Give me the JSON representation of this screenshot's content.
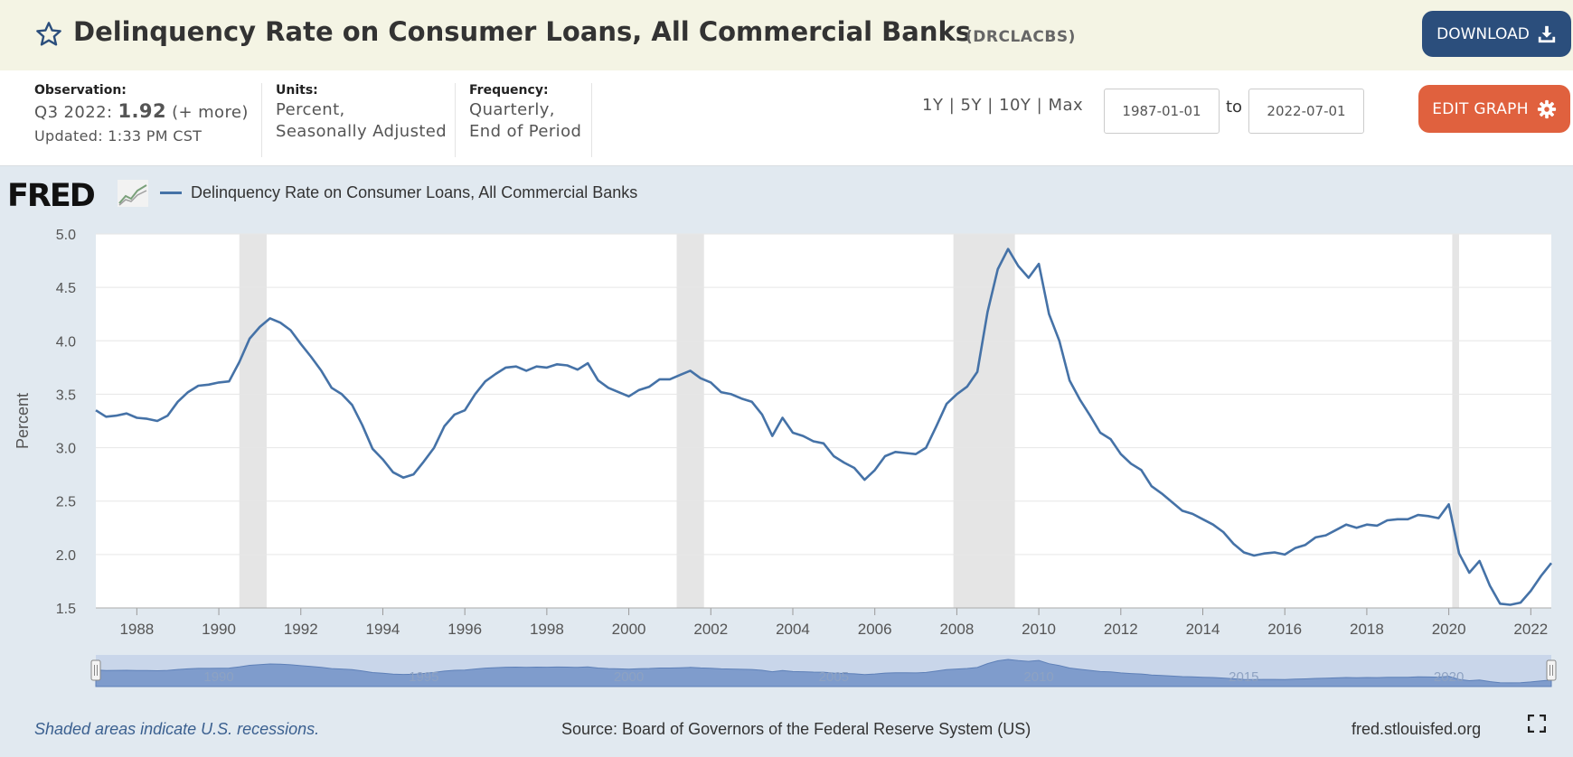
{
  "header": {
    "title": "Delinquency Rate on Consumer Loans, All Commercial Banks",
    "series_id": "(DRCLACBS)",
    "download_label": "DOWNLOAD"
  },
  "info": {
    "observation_label": "Observation:",
    "observation_period": "Q3 2022:",
    "observation_value": "1.92",
    "observation_more": "(+ more)",
    "updated": "Updated: 1:33 PM CST",
    "units_label": "Units:",
    "units_line1": "Percent,",
    "units_line2": "Seasonally Adjusted",
    "frequency_label": "Frequency:",
    "frequency_line1": "Quarterly,",
    "frequency_line2": "End of Period"
  },
  "range": {
    "links": [
      "1Y",
      "5Y",
      "10Y",
      "Max"
    ],
    "separator": "|",
    "start_date": "1987-01-01",
    "end_date": "2022-07-01",
    "to_label": "to"
  },
  "edit_graph_label": "EDIT GRAPH",
  "logo": {
    "text": "FRED"
  },
  "footer": {
    "recession_note": "Shaded areas indicate U.S. recessions.",
    "source": "Source: Board of Governors of the Federal Reserve System (US)",
    "url": "fred.stlouisfed.org"
  },
  "colors": {
    "series": "#4572a7",
    "download_button": "#2b4e7c",
    "edit_button": "#e0613e",
    "header_bg": "#f4f4e4",
    "recession_shade": "#e5e5e5"
  },
  "icons": {
    "favorite": "star-icon",
    "download": "download-icon",
    "edit": "gear-icon",
    "fullscreen": "fullscreen-icon"
  },
  "chart_data": {
    "type": "line",
    "title": "",
    "xlabel": "",
    "ylabel": "Percent",
    "ylim": [
      1.5,
      5.0
    ],
    "xlim": [
      "1987-01-01",
      "2022-07-01"
    ],
    "grid": true,
    "legend": "top-left",
    "y_ticks": [
      "1.5",
      "2.0",
      "2.5",
      "3.0",
      "3.5",
      "4.0",
      "4.5",
      "5.0"
    ],
    "x_ticks": [
      "1988",
      "1990",
      "1992",
      "1994",
      "1996",
      "1998",
      "2000",
      "2002",
      "2004",
      "2006",
      "2008",
      "2010",
      "2012",
      "2014",
      "2016",
      "2018",
      "2020",
      "2022"
    ],
    "navigator_ticks": [
      "1990",
      "1995",
      "2000",
      "2005",
      "2010",
      "2015",
      "2020"
    ],
    "recessions": [
      [
        "1990-07-01",
        "1991-03-01"
      ],
      [
        "2001-03-01",
        "2001-11-01"
      ],
      [
        "2007-12-01",
        "2009-06-01"
      ],
      [
        "2020-02-01",
        "2020-04-01"
      ]
    ],
    "series": [
      {
        "name": "Delinquency Rate on Consumer Loans, All Commercial Banks",
        "x": [
          "1987-01-01",
          "1987-04-01",
          "1987-07-01",
          "1987-10-01",
          "1988-01-01",
          "1988-04-01",
          "1988-07-01",
          "1988-10-01",
          "1989-01-01",
          "1989-04-01",
          "1989-07-01",
          "1989-10-01",
          "1990-01-01",
          "1990-04-01",
          "1990-07-01",
          "1990-10-01",
          "1991-01-01",
          "1991-04-01",
          "1991-07-01",
          "1991-10-01",
          "1992-01-01",
          "1992-04-01",
          "1992-07-01",
          "1992-10-01",
          "1993-01-01",
          "1993-04-01",
          "1993-07-01",
          "1993-10-01",
          "1994-01-01",
          "1994-04-01",
          "1994-07-01",
          "1994-10-01",
          "1995-01-01",
          "1995-04-01",
          "1995-07-01",
          "1995-10-01",
          "1996-01-01",
          "1996-04-01",
          "1996-07-01",
          "1996-10-01",
          "1997-01-01",
          "1997-04-01",
          "1997-07-01",
          "1997-10-01",
          "1998-01-01",
          "1998-04-01",
          "1998-07-01",
          "1998-10-01",
          "1999-01-01",
          "1999-04-01",
          "1999-07-01",
          "1999-10-01",
          "2000-01-01",
          "2000-04-01",
          "2000-07-01",
          "2000-10-01",
          "2001-01-01",
          "2001-04-01",
          "2001-07-01",
          "2001-10-01",
          "2002-01-01",
          "2002-04-01",
          "2002-07-01",
          "2002-10-01",
          "2003-01-01",
          "2003-04-01",
          "2003-07-01",
          "2003-10-01",
          "2004-01-01",
          "2004-04-01",
          "2004-07-01",
          "2004-10-01",
          "2005-01-01",
          "2005-04-01",
          "2005-07-01",
          "2005-10-01",
          "2006-01-01",
          "2006-04-01",
          "2006-07-01",
          "2006-10-01",
          "2007-01-01",
          "2007-04-01",
          "2007-07-01",
          "2007-10-01",
          "2008-01-01",
          "2008-04-01",
          "2008-07-01",
          "2008-10-01",
          "2009-01-01",
          "2009-04-01",
          "2009-07-01",
          "2009-10-01",
          "2010-01-01",
          "2010-04-01",
          "2010-07-01",
          "2010-10-01",
          "2011-01-01",
          "2011-04-01",
          "2011-07-01",
          "2011-10-01",
          "2012-01-01",
          "2012-04-01",
          "2012-07-01",
          "2012-10-01",
          "2013-01-01",
          "2013-04-01",
          "2013-07-01",
          "2013-10-01",
          "2014-01-01",
          "2014-04-01",
          "2014-07-01",
          "2014-10-01",
          "2015-01-01",
          "2015-04-01",
          "2015-07-01",
          "2015-10-01",
          "2016-01-01",
          "2016-04-01",
          "2016-07-01",
          "2016-10-01",
          "2017-01-01",
          "2017-04-01",
          "2017-07-01",
          "2017-10-01",
          "2018-01-01",
          "2018-04-01",
          "2018-07-01",
          "2018-10-01",
          "2019-01-01",
          "2019-04-01",
          "2019-07-01",
          "2019-10-01",
          "2020-01-01",
          "2020-04-01",
          "2020-07-01",
          "2020-10-01",
          "2021-01-01",
          "2021-04-01",
          "2021-07-01",
          "2021-10-01",
          "2022-01-01",
          "2022-04-01",
          "2022-07-01"
        ],
        "values": [
          3.35,
          3.29,
          3.3,
          3.32,
          3.28,
          3.27,
          3.25,
          3.3,
          3.43,
          3.52,
          3.58,
          3.59,
          3.61,
          3.62,
          3.8,
          4.02,
          4.13,
          4.21,
          4.17,
          4.1,
          3.97,
          3.85,
          3.72,
          3.56,
          3.5,
          3.4,
          3.21,
          2.99,
          2.89,
          2.77,
          2.72,
          2.75,
          2.87,
          3.0,
          3.2,
          3.31,
          3.35,
          3.5,
          3.62,
          3.69,
          3.75,
          3.76,
          3.72,
          3.76,
          3.75,
          3.78,
          3.77,
          3.73,
          3.79,
          3.63,
          3.56,
          3.52,
          3.48,
          3.54,
          3.57,
          3.64,
          3.64,
          3.68,
          3.72,
          3.65,
          3.61,
          3.52,
          3.5,
          3.46,
          3.43,
          3.31,
          3.11,
          3.28,
          3.14,
          3.11,
          3.06,
          3.04,
          2.92,
          2.86,
          2.81,
          2.7,
          2.79,
          2.92,
          2.96,
          2.95,
          2.94,
          3.0,
          3.2,
          3.41,
          3.5,
          3.57,
          3.71,
          4.27,
          4.67,
          4.86,
          4.7,
          4.59,
          4.72,
          4.25,
          4.0,
          3.63,
          3.45,
          3.3,
          3.14,
          3.08,
          2.94,
          2.85,
          2.79,
          2.64,
          2.57,
          2.49,
          2.41,
          2.38,
          2.33,
          2.28,
          2.21,
          2.1,
          2.02,
          1.99,
          2.01,
          2.02,
          2.0,
          2.06,
          2.09,
          2.16,
          2.18,
          2.23,
          2.28,
          2.25,
          2.28,
          2.27,
          2.32,
          2.33,
          2.33,
          2.37,
          2.36,
          2.34,
          2.47,
          2.01,
          1.83,
          1.94,
          1.71,
          1.54,
          1.53,
          1.55,
          1.66,
          1.8,
          1.92
        ]
      }
    ]
  }
}
